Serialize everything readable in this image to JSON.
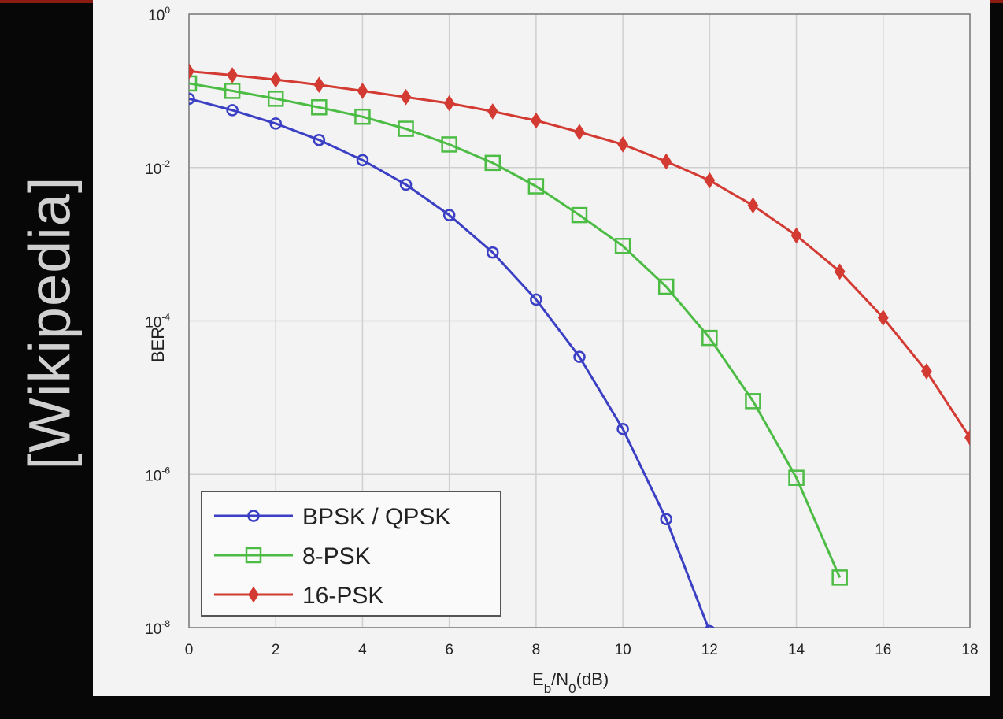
{
  "side_label": "[Wikipedia]",
  "chart_data": {
    "type": "line",
    "xlabel": "Eb/N0(dB)",
    "ylabel": "BER",
    "y_scale": "log",
    "xlim": [
      0,
      18
    ],
    "ylim": [
      1e-08,
      1
    ],
    "x_ticks": [
      "0",
      "2",
      "4",
      "6",
      "8",
      "10",
      "12",
      "14",
      "16",
      "18"
    ],
    "y_ticks": [
      {
        "base": "10",
        "exp": "0"
      },
      {
        "base": "10",
        "exp": "-2"
      },
      {
        "base": "10",
        "exp": "-4"
      },
      {
        "base": "10",
        "exp": "-6"
      },
      {
        "base": "10",
        "exp": "-8"
      }
    ],
    "grid": true,
    "legend_position": "bottom-left",
    "series": [
      {
        "name": "BPSK / QPSK",
        "color": "#3a3fc4",
        "marker": "circle",
        "x": [
          0,
          1,
          2,
          3,
          4,
          5,
          6,
          7,
          8,
          9,
          10,
          11,
          12
        ],
        "y": [
          0.079,
          0.056,
          0.0375,
          0.0229,
          0.0125,
          0.006,
          0.0024,
          0.00078,
          0.00019,
          3.4e-05,
          3.9e-06,
          2.6e-07,
          9e-09
        ]
      },
      {
        "name": "8-PSK",
        "color": "#4cbc44",
        "marker": "square",
        "x": [
          0,
          1,
          2,
          3,
          4,
          5,
          6,
          7,
          8,
          9,
          10,
          11,
          12,
          13,
          14,
          15
        ],
        "y": [
          0.125,
          0.1,
          0.079,
          0.061,
          0.046,
          0.032,
          0.02,
          0.0115,
          0.0057,
          0.0024,
          0.00095,
          0.00028,
          6e-05,
          9e-06,
          9e-07,
          4.5e-08
        ]
      },
      {
        "name": "16-PSK",
        "color": "#d23a32",
        "marker": "diamond",
        "x": [
          0,
          1,
          2,
          3,
          4,
          5,
          6,
          7,
          8,
          9,
          10,
          11,
          12,
          13,
          14,
          15,
          16,
          17,
          18
        ],
        "y": [
          0.18,
          0.16,
          0.14,
          0.12,
          0.1,
          0.083,
          0.069,
          0.054,
          0.041,
          0.029,
          0.02,
          0.012,
          0.0068,
          0.0032,
          0.0013,
          0.00044,
          0.00011,
          2.2e-05,
          3e-06
        ]
      }
    ]
  }
}
